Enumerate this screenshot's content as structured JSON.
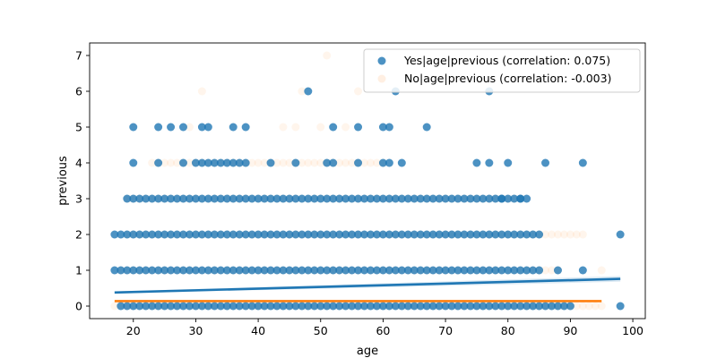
{
  "chart_data": {
    "type": "scatter",
    "title": "",
    "xlabel": "age",
    "ylabel": "previous",
    "xlim": [
      13,
      102
    ],
    "ylim": [
      -0.35,
      7.35
    ],
    "xticks": [
      20,
      30,
      40,
      50,
      60,
      70,
      80,
      90,
      100
    ],
    "yticks": [
      0,
      1,
      2,
      3,
      4,
      5,
      6,
      7
    ],
    "grid": false,
    "legend_position": "top-right",
    "series": [
      {
        "name": "Yes|age|previous (correlation: 0.075)",
        "color": "#1f77b4",
        "point_opacity": 0.8,
        "regression": {
          "x": [
            17,
            98
          ],
          "y": [
            0.38,
            0.76
          ]
        },
        "ranges": [
          {
            "y": 0,
            "x_from": 18,
            "x_to": 90
          },
          {
            "y": 1,
            "x_from": 17,
            "x_to": 85
          },
          {
            "y": 2,
            "x_from": 17,
            "x_to": 85
          },
          {
            "y": 3,
            "x_from": 19,
            "x_to": 83
          }
        ],
        "points": [
          [
            98,
            0
          ],
          [
            88,
            1
          ],
          [
            92,
            1
          ],
          [
            98,
            2
          ],
          [
            79,
            3
          ],
          [
            82,
            3
          ],
          [
            20,
            4
          ],
          [
            24,
            4
          ],
          [
            28,
            4
          ],
          [
            30,
            4
          ],
          [
            31,
            4
          ],
          [
            32,
            4
          ],
          [
            33,
            4
          ],
          [
            34,
            4
          ],
          [
            35,
            4
          ],
          [
            36,
            4
          ],
          [
            37,
            4
          ],
          [
            38,
            4
          ],
          [
            42,
            4
          ],
          [
            46,
            4
          ],
          [
            51,
            4
          ],
          [
            52,
            4
          ],
          [
            56,
            4
          ],
          [
            60,
            4
          ],
          [
            61,
            4
          ],
          [
            63,
            4
          ],
          [
            75,
            4
          ],
          [
            77,
            4
          ],
          [
            80,
            4
          ],
          [
            86,
            4
          ],
          [
            92,
            4
          ],
          [
            20,
            5
          ],
          [
            24,
            5
          ],
          [
            26,
            5
          ],
          [
            28,
            5
          ],
          [
            31,
            5
          ],
          [
            32,
            5
          ],
          [
            36,
            5
          ],
          [
            38,
            5
          ],
          [
            52,
            5
          ],
          [
            56,
            5
          ],
          [
            60,
            5
          ],
          [
            61,
            5
          ],
          [
            67,
            5
          ],
          [
            48,
            6
          ],
          [
            62,
            6
          ],
          [
            77,
            6
          ]
        ]
      },
      {
        "name": "No|age|previous (correlation: -0.003)",
        "color": "#ff7f0e",
        "point_opacity": 0.08,
        "regression": {
          "x": [
            17,
            95
          ],
          "y": [
            0.14,
            0.14
          ]
        },
        "ranges": [
          {
            "y": 0,
            "x_from": 17,
            "x_to": 95
          },
          {
            "y": 1,
            "x_from": 18,
            "x_to": 88
          },
          {
            "y": 2,
            "x_from": 19,
            "x_to": 90
          },
          {
            "y": 3,
            "x_from": 19,
            "x_to": 82
          },
          {
            "y": 4,
            "x_from": 23,
            "x_to": 60
          }
        ],
        "points": [
          [
            95,
            1
          ],
          [
            91,
            2
          ],
          [
            92,
            2
          ],
          [
            29,
            5
          ],
          [
            44,
            5
          ],
          [
            46,
            5
          ],
          [
            50,
            5
          ],
          [
            54,
            5
          ],
          [
            31,
            6
          ],
          [
            47,
            6
          ],
          [
            56,
            6
          ],
          [
            51,
            7
          ]
        ]
      }
    ]
  }
}
